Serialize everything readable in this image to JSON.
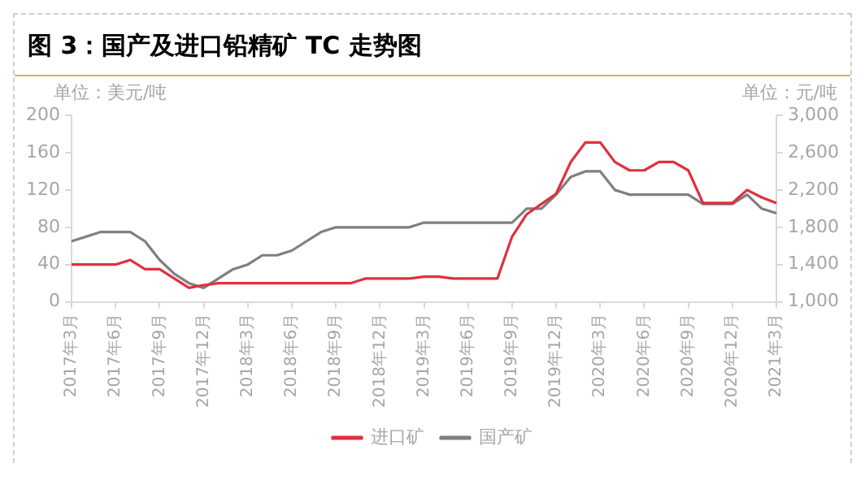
{
  "chart_data": {
    "type": "line",
    "title": "图 3：国产及进口铅精矿 TC 走势图",
    "ylabel": "单位：美元/吨",
    "y2label": "单位：元/吨",
    "categories": [
      "2017年3月",
      null,
      null,
      "2017年6月",
      null,
      null,
      "2017年9月",
      null,
      null,
      "2017年12月",
      null,
      null,
      "2018年3月",
      null,
      null,
      "2018年6月",
      null,
      null,
      "2018年9月",
      null,
      null,
      "2018年12月",
      null,
      null,
      "2019年3月",
      null,
      null,
      "2019年6月",
      null,
      null,
      "2019年9月",
      null,
      null,
      "2019年12月",
      null,
      null,
      "2020年3月",
      null,
      null,
      "2020年6月",
      null,
      null,
      "2020年9月",
      null,
      null,
      "2020年12月",
      null,
      null,
      "2021年3月"
    ],
    "series": [
      {
        "name": "进口矿",
        "color": "#e0303e",
        "values": [
          40,
          40,
          40,
          40,
          45,
          35,
          35,
          25,
          15,
          18,
          20,
          20,
          20,
          20,
          20,
          20,
          20,
          20,
          20,
          20,
          25,
          25,
          25,
          25,
          27,
          27,
          25,
          25,
          25,
          25,
          70,
          94,
          105,
          116,
          150,
          171,
          171,
          150,
          141,
          141,
          150,
          150,
          141,
          106,
          106,
          106,
          120,
          112,
          106
        ]
      },
      {
        "name": "国产矿",
        "color": "#7f7f7f",
        "axis": "y2",
        "values": [
          1650,
          1700,
          1750,
          1750,
          1750,
          1650,
          1450,
          1300,
          1200,
          1150,
          1250,
          1350,
          1400,
          1500,
          1500,
          1550,
          1650,
          1750,
          1800,
          1800,
          1800,
          1800,
          1800,
          1800,
          1850,
          1850,
          1850,
          1850,
          1850,
          1850,
          1850,
          2000,
          2000,
          2150,
          2340,
          2400,
          2400,
          2200,
          2150,
          2150,
          2150,
          2150,
          2150,
          2050,
          2050,
          2050,
          2150,
          2000,
          1950
        ]
      }
    ],
    "ylim": [
      0,
      200
    ],
    "yticks": [
      0,
      40,
      80,
      120,
      160,
      200
    ],
    "y2lim": [
      1000,
      3000
    ],
    "y2ticks": [
      {
        "value": 1000,
        "label": "1,000"
      },
      {
        "value": 1400,
        "label": "1,400"
      },
      {
        "value": 1800,
        "label": "1,800"
      },
      {
        "value": 2200,
        "label": "2,200"
      },
      {
        "value": 2600,
        "label": "2,600"
      },
      {
        "value": 3000,
        "label": "3,000"
      }
    ],
    "grid": false,
    "legend": "bottom",
    "marker": "none",
    "line_style": "solid"
  }
}
